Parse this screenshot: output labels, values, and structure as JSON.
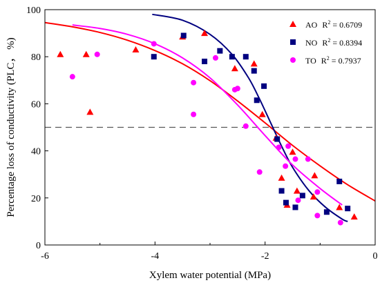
{
  "chart_data": {
    "type": "scatter",
    "title": "",
    "xlabel": "Xylem water potential (MPa)",
    "ylabel": "Percentage loss of conductivity (PLC， %)",
    "xlim": [
      -6,
      0
    ],
    "ylim": [
      0,
      100
    ],
    "xticks": [
      "-6",
      "-4",
      "-2",
      "0"
    ],
    "yticks": [
      "0",
      "20",
      "40",
      "60",
      "80",
      "100"
    ],
    "reference_line": {
      "y": 50,
      "style": "dashed",
      "color": "#555555"
    },
    "legend_position": "top-right",
    "series": [
      {
        "name": "AO",
        "r2_text": "R",
        "r2_sup": "2",
        "r2_value": " = 0.6709",
        "color": "#ff0000",
        "marker": "triangle",
        "points": [
          [
            -5.72,
            81
          ],
          [
            -5.25,
            81
          ],
          [
            -5.18,
            56.5
          ],
          [
            -4.35,
            83
          ],
          [
            -3.5,
            88.5
          ],
          [
            -3.1,
            90
          ],
          [
            -2.55,
            75
          ],
          [
            -2.2,
            77
          ],
          [
            -2.05,
            55.5
          ],
          [
            -1.8,
            45.5
          ],
          [
            -1.7,
            28.5
          ],
          [
            -1.6,
            17
          ],
          [
            -1.5,
            39.5
          ],
          [
            -1.42,
            23
          ],
          [
            -1.12,
            20.5
          ],
          [
            -1.1,
            29.5
          ],
          [
            -0.65,
            16
          ],
          [
            -0.38,
            12
          ]
        ],
        "fit": [
          [
            -6,
            94.5
          ],
          [
            -5.5,
            92.7
          ],
          [
            -5,
            90.3
          ],
          [
            -4.5,
            87
          ],
          [
            -4,
            82.6
          ],
          [
            -3.5,
            77
          ],
          [
            -3,
            69.8
          ],
          [
            -2.5,
            61.2
          ],
          [
            -2,
            51.9
          ],
          [
            -1.5,
            42.3
          ],
          [
            -1,
            33.6
          ],
          [
            -0.5,
            25.6
          ],
          [
            0,
            18.7
          ]
        ]
      },
      {
        "name": "NO",
        "r2_text": "R",
        "r2_sup": "2",
        "r2_value": " = 0.8394",
        "color": "#000080",
        "marker": "square",
        "points": [
          [
            -4.02,
            80
          ],
          [
            -3.48,
            89
          ],
          [
            -3.1,
            78
          ],
          [
            -2.82,
            82.5
          ],
          [
            -2.6,
            80
          ],
          [
            -2.35,
            80
          ],
          [
            -2.2,
            74
          ],
          [
            -2.15,
            61.5
          ],
          [
            -2.02,
            67.5
          ],
          [
            -1.78,
            45
          ],
          [
            -1.7,
            23
          ],
          [
            -1.62,
            18
          ],
          [
            -1.45,
            16
          ],
          [
            -1.32,
            21
          ],
          [
            -0.88,
            14
          ],
          [
            -0.65,
            27
          ],
          [
            -0.5,
            15.5
          ]
        ],
        "fit": [
          [
            -4.05,
            98
          ],
          [
            -3.5,
            95.5
          ],
          [
            -3,
            89.5
          ],
          [
            -2.6,
            81
          ],
          [
            -2.3,
            71
          ],
          [
            -2.1,
            62
          ],
          [
            -1.9,
            52
          ],
          [
            -1.7,
            42
          ],
          [
            -1.5,
            33
          ],
          [
            -1.2,
            23
          ],
          [
            -0.9,
            16
          ],
          [
            -0.6,
            11
          ],
          [
            -0.5,
            10
          ]
        ]
      },
      {
        "name": "TO",
        "r2_text": "R",
        "r2_sup": "2",
        "r2_value": " = 0.7937",
        "color": "#ff00ff",
        "marker": "circle",
        "points": [
          [
            -5.5,
            71.5
          ],
          [
            -5.05,
            81
          ],
          [
            -4.02,
            85.5
          ],
          [
            -3.3,
            69
          ],
          [
            -3.3,
            55.5
          ],
          [
            -2.9,
            79.5
          ],
          [
            -2.55,
            66
          ],
          [
            -2.5,
            66.5
          ],
          [
            -2.35,
            50.5
          ],
          [
            -2.1,
            31
          ],
          [
            -1.75,
            41.5
          ],
          [
            -1.63,
            33.5
          ],
          [
            -1.58,
            42
          ],
          [
            -1.45,
            36.5
          ],
          [
            -1.4,
            19
          ],
          [
            -1.22,
            36.5
          ],
          [
            -1.05,
            22.5
          ],
          [
            -1.05,
            12.5
          ],
          [
            -0.63,
            9.5
          ]
        ],
        "fit": [
          [
            -5.5,
            93.5
          ],
          [
            -5,
            92
          ],
          [
            -4.5,
            89.5
          ],
          [
            -4,
            85.5
          ],
          [
            -3.5,
            79.5
          ],
          [
            -3,
            71
          ],
          [
            -2.5,
            59.5
          ],
          [
            -2,
            46.5
          ],
          [
            -1.5,
            34
          ],
          [
            -1,
            24
          ],
          [
            -0.6,
            17
          ]
        ]
      }
    ]
  }
}
